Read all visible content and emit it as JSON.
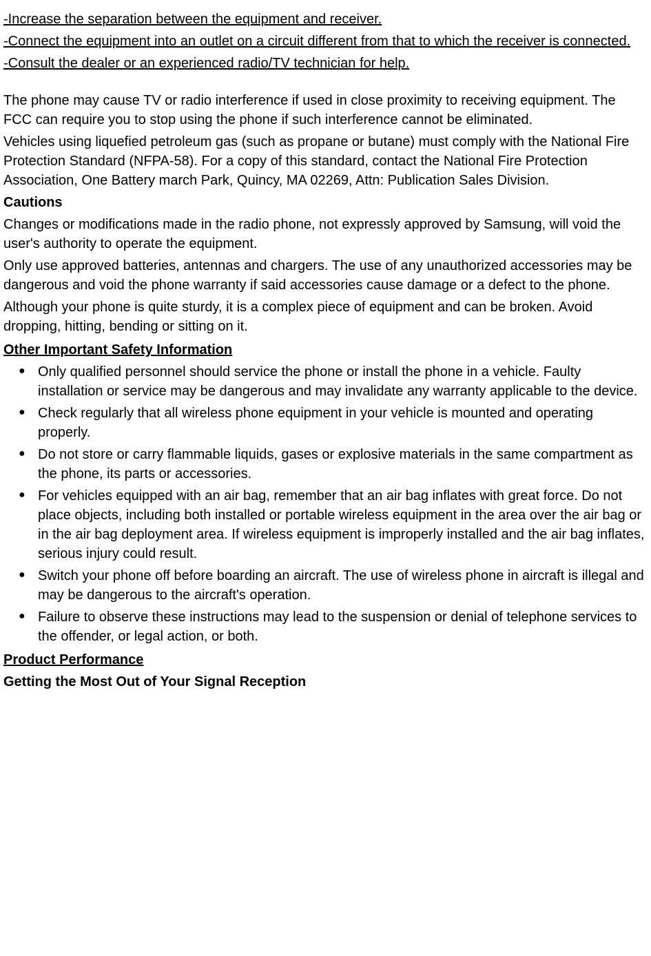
{
  "interference": {
    "bullet1": "-Increase the separation between the equipment and receiver.",
    "bullet2": "-Connect the equipment into an outlet on a circuit different from that to which the receiver is connected.",
    "bullet3": "-Consult the dealer or an experienced radio/TV technician for help."
  },
  "paragraph1": "The phone may cause TV or radio interference if used in close proximity to receiving equipment. The FCC can require you to stop using the phone if such interference cannot be eliminated.",
  "paragraph2": "Vehicles using liquefied petroleum gas (such as propane or butane) must comply with the National Fire Protection Standard (NFPA-58). For a copy of this standard, contact the National Fire Protection Association, One Battery march Park, Quincy, MA 02269, Attn: Publication Sales Division.",
  "cautions": {
    "heading": "Cautions",
    "p1": "Changes or modifications made in the radio phone, not expressly approved by Samsung, will void the user's authority to operate the equipment.",
    "p2": "Only use approved batteries, antennas and chargers. The use of any unauthorized accessories may be dangerous and void the phone warranty if said accessories cause damage or a defect to the phone.",
    "p3": "Although your phone is quite sturdy, it is a complex piece of equipment and can be broken. Avoid dropping, hitting, bending or sitting on it."
  },
  "otherSafety": {
    "heading": "Other Important Safety Information",
    "items": [
      "Only qualified personnel should service the phone or install the phone in a vehicle. Faulty installation or service may be dangerous and may invalidate any warranty applicable to the device.",
      "Check regularly that all wireless phone equipment in your vehicle is mounted and operating properly.",
      "Do not store or carry flammable liquids, gases or explosive materials in the same compartment as the phone, its parts or accessories.",
      "For vehicles equipped with an air bag, remember that an air bag inflates with great force. Do not place objects, including both installed or portable wireless equipment in the area over the air bag or in the air bag deployment area. If wireless equipment is improperly installed and the air bag inflates, serious injury could result.",
      "Switch your phone off before boarding an aircraft. The use of wireless phone in aircraft is illegal and may be dangerous to the aircraft's operation.",
      "Failure to observe these instructions may lead to the suspension or denial of telephone services to the offender, or legal action, or both."
    ]
  },
  "productPerformance": {
    "heading": "Product Performance",
    "subheading": "Getting the Most Out of Your Signal Reception"
  }
}
